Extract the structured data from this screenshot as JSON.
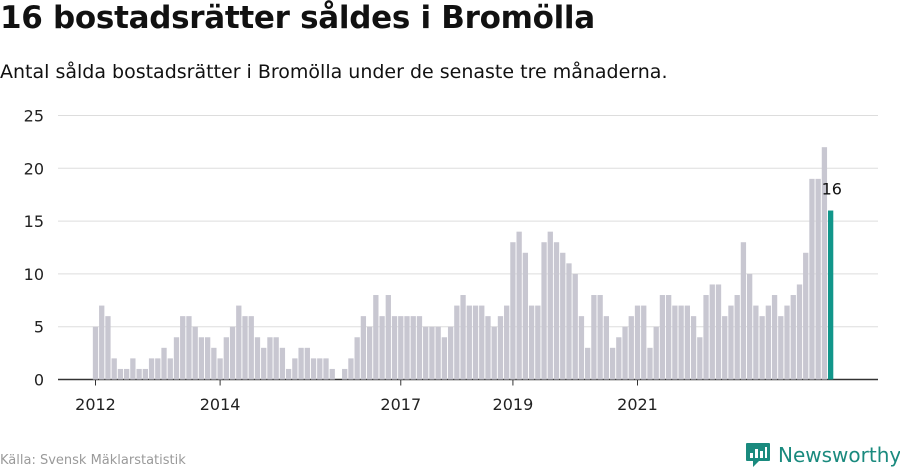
{
  "header": {
    "title": "16 bostadsrätter såldes i Bromölla",
    "subtitle": "Antal sålda bostadsrätter i Bromölla under de senaste tre månaderna."
  },
  "footer": {
    "source": "Källa: Svensk Mäklarstatistik",
    "brand": "Newsworthy"
  },
  "colors": {
    "bar": "#c8c7d1",
    "highlight": "#11968a",
    "grid": "#dddddd",
    "axis": "#333333",
    "brand": "#1a8a7e"
  },
  "chart_data": {
    "type": "bar",
    "title": "16 bostadsrätter såldes i Bromölla",
    "subtitle": "Antal sålda bostadsrätter i Bromölla under de senaste tre månaderna.",
    "ylim": [
      0,
      25
    ],
    "yticks": [
      0,
      5,
      10,
      15,
      20,
      25
    ],
    "x_tick_labels": [
      {
        "label": "2012",
        "index": 0
      },
      {
        "label": "2014",
        "index": 20
      },
      {
        "label": "2017",
        "index": 49
      },
      {
        "label": "2019",
        "index": 67
      },
      {
        "label": "2021",
        "index": 87
      }
    ],
    "values": [
      5,
      7,
      6,
      2,
      1,
      1,
      2,
      1,
      1,
      2,
      2,
      3,
      2,
      4,
      6,
      6,
      5,
      4,
      4,
      3,
      2,
      4,
      5,
      7,
      6,
      6,
      4,
      3,
      4,
      4,
      3,
      1,
      2,
      3,
      3,
      2,
      2,
      2,
      1,
      0,
      1,
      2,
      4,
      6,
      5,
      8,
      6,
      8,
      6,
      6,
      6,
      6,
      6,
      5,
      5,
      5,
      4,
      5,
      7,
      8,
      7,
      7,
      7,
      6,
      5,
      6,
      7,
      13,
      14,
      12,
      7,
      7,
      13,
      14,
      13,
      12,
      11,
      10,
      6,
      3,
      8,
      8,
      6,
      3,
      4,
      5,
      6,
      7,
      7,
      3,
      5,
      8,
      8,
      7,
      7,
      7,
      6,
      4,
      8,
      9,
      9,
      6,
      7,
      8,
      13,
      10,
      7,
      6,
      7,
      8,
      6,
      7,
      8,
      9,
      12,
      19,
      19,
      22,
      16
    ],
    "highlight_index": 118,
    "highlight_label": "16",
    "grid": true
  }
}
